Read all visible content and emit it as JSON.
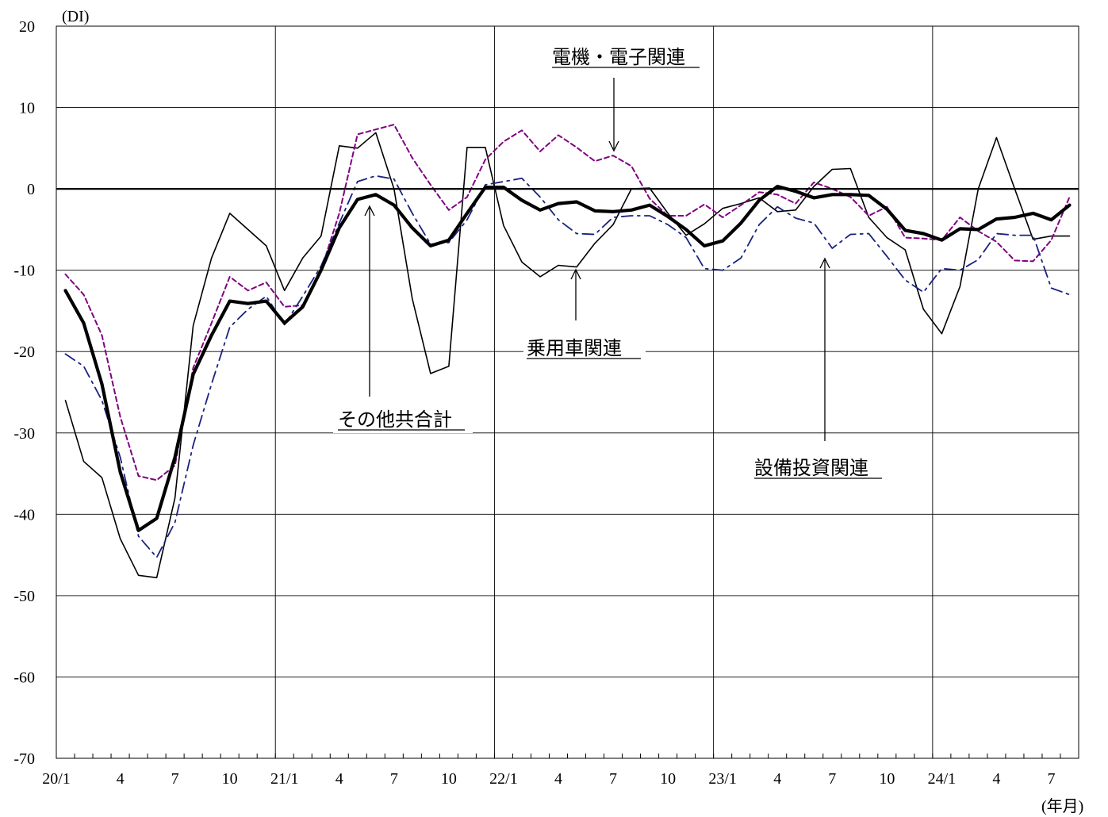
{
  "chart_data": {
    "type": "line",
    "y_unit": "(DI)",
    "x_unit": "(年月)",
    "ylim": [
      -70,
      20
    ],
    "yticks": [
      20,
      10,
      0,
      -10,
      -20,
      -30,
      -40,
      -50,
      -60,
      -70
    ],
    "ytick_labels": [
      "20",
      "10",
      "0",
      "-10",
      "-20",
      "-30",
      "-40",
      "-50",
      "-60",
      "-70"
    ],
    "n_months": 56,
    "x_tick_labels": [
      {
        "month_index": 0,
        "label": "20/1"
      },
      {
        "month_index": 3,
        "label": "4"
      },
      {
        "month_index": 6,
        "label": "7"
      },
      {
        "month_index": 9,
        "label": "10"
      },
      {
        "month_index": 12,
        "label": "21/1"
      },
      {
        "month_index": 15,
        "label": "4"
      },
      {
        "month_index": 18,
        "label": "7"
      },
      {
        "month_index": 21,
        "label": "10"
      },
      {
        "month_index": 24,
        "label": "22/1"
      },
      {
        "month_index": 27,
        "label": "4"
      },
      {
        "month_index": 30,
        "label": "7"
      },
      {
        "month_index": 33,
        "label": "10"
      },
      {
        "month_index": 36,
        "label": "23/1"
      },
      {
        "month_index": 39,
        "label": "4"
      },
      {
        "month_index": 42,
        "label": "7"
      },
      {
        "month_index": 45,
        "label": "10"
      },
      {
        "month_index": 48,
        "label": "24/1"
      },
      {
        "month_index": 51,
        "label": "4"
      },
      {
        "month_index": 54,
        "label": "7"
      }
    ],
    "grid": true,
    "series": [
      {
        "name": "乗用車関連",
        "style": "solid-thin",
        "color": "#000000",
        "values": [
          -26.0,
          -33.5,
          -35.5,
          -43.0,
          -47.5,
          -47.8,
          -38.0,
          -16.8,
          -8.5,
          -3.0,
          -5.0,
          -7.0,
          -12.5,
          -8.5,
          -5.8,
          5.3,
          5.0,
          6.9,
          0.0,
          -13.5,
          -22.7,
          -21.8,
          5.1,
          5.1,
          -4.5,
          -9.0,
          -10.8,
          -9.4,
          -9.6,
          -6.7,
          -4.4,
          0.0,
          0.1,
          -3.0,
          -5.7,
          -4.3,
          -2.4,
          -1.8,
          -1.1,
          -2.8,
          -2.6,
          0.3,
          2.4,
          2.5,
          -3.5,
          -6.0,
          -7.5,
          -14.8,
          -17.8,
          -12.0,
          0.0,
          6.3,
          0.0,
          -6.2,
          -5.8,
          -5.8
        ]
      },
      {
        "name": "電機・電子関連",
        "style": "dash",
        "color": "#800080",
        "values": [
          -10.5,
          -13.0,
          -18.0,
          -28.0,
          -35.3,
          -35.8,
          -34.0,
          -22.0,
          -16.5,
          -10.8,
          -12.5,
          -11.5,
          -14.5,
          -14.3,
          -10.0,
          -3.0,
          6.7,
          7.3,
          7.9,
          3.8,
          0.5,
          -2.6,
          -1.0,
          3.6,
          5.8,
          7.2,
          4.6,
          6.6,
          5.1,
          3.4,
          4.1,
          2.8,
          -1.2,
          -3.3,
          -3.3,
          -1.9,
          -3.5,
          -2.0,
          -0.4,
          -0.7,
          -1.8,
          0.8,
          0.0,
          -1.0,
          -3.3,
          -2.2,
          -6.0,
          -6.1,
          -6.3,
          -3.5,
          -5.2,
          -6.5,
          -8.8,
          -8.9,
          -6.3,
          -1.0
        ]
      },
      {
        "name": "設備投資関連",
        "style": "dash-dot",
        "color": "#1a237e",
        "values": [
          -20.3,
          -21.8,
          -26.0,
          -33.0,
          -42.7,
          -45.3,
          -41.0,
          -31.5,
          -24.0,
          -17.0,
          -14.8,
          -13.2,
          -16.7,
          -13.2,
          -9.5,
          -4.2,
          0.9,
          1.6,
          1.2,
          -3.0,
          -6.8,
          -6.6,
          -3.8,
          0.5,
          0.9,
          1.3,
          -1.0,
          -3.8,
          -5.5,
          -5.6,
          -3.5,
          -3.3,
          -3.3,
          -4.4,
          -6.0,
          -9.8,
          -10.0,
          -8.5,
          -4.4,
          -2.2,
          -3.6,
          -4.2,
          -7.3,
          -5.6,
          -5.5,
          -8.3,
          -11.2,
          -12.7,
          -9.8,
          -10.0,
          -8.7,
          -5.5,
          -5.7,
          -5.7,
          -12.2,
          -13.0
        ]
      },
      {
        "name": "その他共合計",
        "style": "solid-thick",
        "color": "#000000",
        "values": [
          -12.5,
          -16.5,
          -24.0,
          -34.8,
          -42.0,
          -40.5,
          -33.0,
          -22.8,
          -18.0,
          -13.8,
          -14.1,
          -13.8,
          -16.5,
          -14.5,
          -10.0,
          -4.8,
          -1.3,
          -0.7,
          -2.0,
          -4.8,
          -7.0,
          -6.3,
          -3.0,
          0.2,
          0.2,
          -1.4,
          -2.6,
          -1.8,
          -1.6,
          -2.7,
          -2.8,
          -2.6,
          -2.0,
          -3.4,
          -5.0,
          -7.0,
          -6.4,
          -4.2,
          -1.4,
          0.3,
          -0.3,
          -1.1,
          -0.7,
          -0.7,
          -0.8,
          -2.5,
          -5.1,
          -5.5,
          -6.3,
          -4.9,
          -5.0,
          -3.7,
          -3.5,
          -3.0,
          -3.8,
          -2.0
        ]
      }
    ],
    "annotations": [
      {
        "label": "電機・電子関連",
        "series": "電機・電子関連"
      },
      {
        "label": "乗用車関連",
        "series": "乗用車関連"
      },
      {
        "label": "その他共合計",
        "series": "その他共合計"
      },
      {
        "label": "設備投資関連",
        "series": "設備投資関連"
      }
    ]
  }
}
